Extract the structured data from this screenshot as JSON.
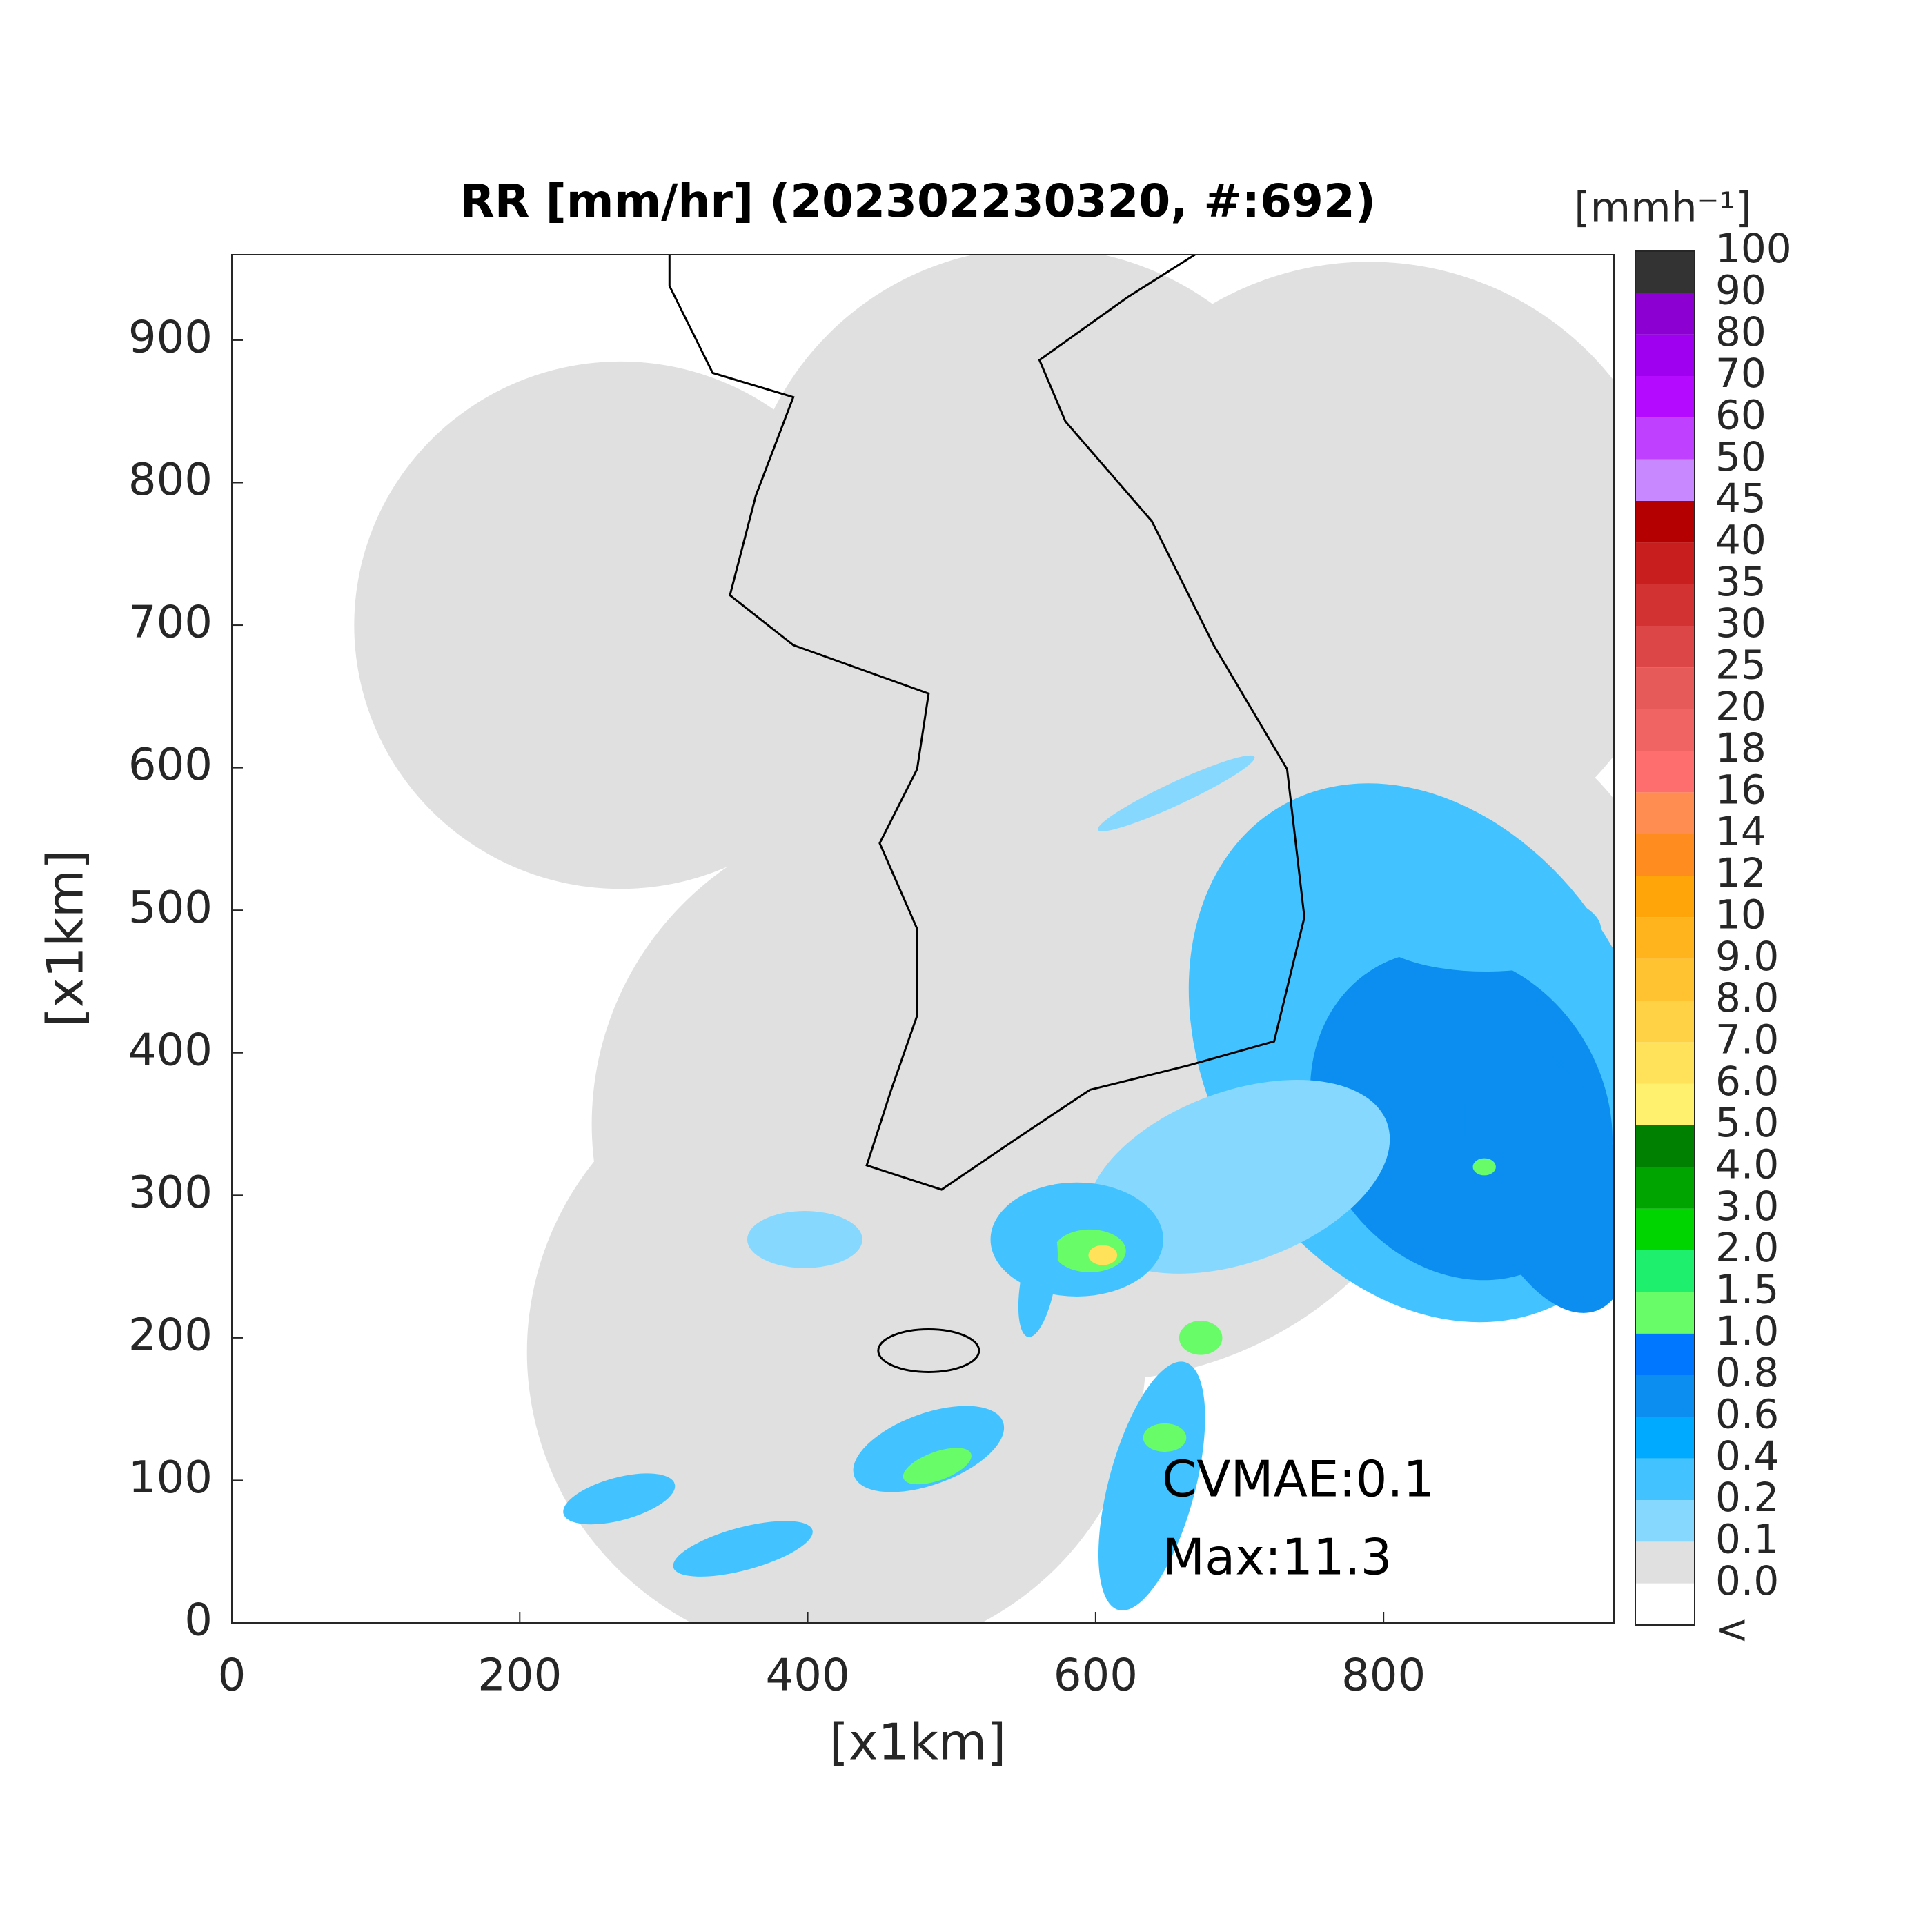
{
  "map": {
    "title": "RR [mm/hr] (202302230320, #:692)",
    "xlabel": "[x1km]",
    "ylabel": "[x1km]",
    "xlim": [
      0,
      960
    ],
    "ylim": [
      0,
      960
    ],
    "xticks": [
      0,
      200,
      400,
      600,
      800
    ],
    "yticks": [
      0,
      100,
      200,
      300,
      400,
      500,
      600,
      700,
      800,
      900
    ],
    "annotations": [
      "CVMAE:0.1",
      "Max:11.3"
    ],
    "colorbar": {
      "unit": "[mmh⁻¹]",
      "labels": [
        "<",
        "0.0",
        "0.1",
        "0.2",
        "0.4",
        "0.6",
        "0.8",
        "1.0",
        "1.5",
        "2.0",
        "3.0",
        "4.0",
        "5.0",
        "6.0",
        "7.0",
        "8.0",
        "9.0",
        "10",
        "12",
        "14",
        "16",
        "18",
        "20",
        "25",
        "30",
        "35",
        "40",
        "45",
        "50",
        "60",
        "70",
        "80",
        "90",
        "100"
      ],
      "colors": [
        "#ffffff",
        "#e0e0e0",
        "#87d8ff",
        "#42c3ff",
        "#00aaff",
        "#0b8ef0",
        "#0077ff",
        "#69fc69",
        "#1ef06e",
        "#00d500",
        "#00a400",
        "#008000",
        "#fff06e",
        "#ffe15a",
        "#ffd246",
        "#ffc332",
        "#ffb41e",
        "#ffa50a",
        "#ff8c1e",
        "#ff8c50",
        "#ff6e6e",
        "#f06464",
        "#e65a5a",
        "#dc4646",
        "#d23232",
        "#c81e1e",
        "#b40000",
        "#c888ff",
        "#c040ff",
        "#b40aff",
        "#a000f0",
        "#8c00d2",
        "#333333"
      ]
    }
  }
}
